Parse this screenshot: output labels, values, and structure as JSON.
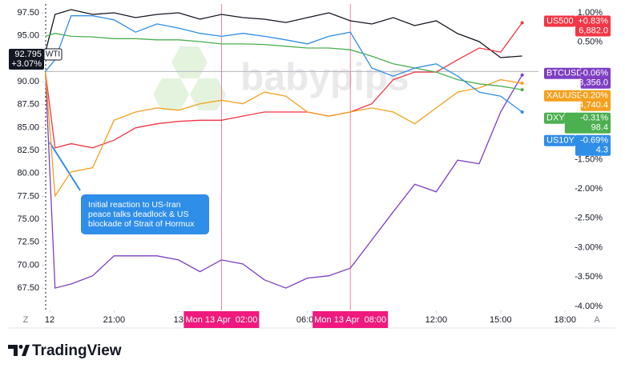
{
  "chart_data": {
    "type": "line",
    "x": [
      -0.2,
      0.25,
      1,
      2,
      3,
      4,
      5,
      6,
      7,
      8,
      9,
      10,
      11,
      12,
      13,
      14,
      15,
      16,
      17,
      18,
      19,
      20,
      21,
      22
    ],
    "xlim": [
      -0.26,
      22.76
    ],
    "xticks": [
      {
        "value": 0,
        "label": "12"
      },
      {
        "value": 3,
        "label": "21:00"
      },
      {
        "value": 6,
        "label": "13"
      },
      {
        "value": 8,
        "label": "Mon 13 Apr  02:00",
        "highlight": true
      },
      {
        "value": 12,
        "label": "06:00"
      },
      {
        "value": 14,
        "label": "Mon 13 Apr  08:00",
        "highlight": true
      },
      {
        "value": 18,
        "label": "12:00"
      },
      {
        "value": 21,
        "label": "15:00"
      },
      {
        "value": 24,
        "label": "18:00"
      }
    ],
    "ylim": [
      65.07,
      98.46
    ],
    "yticks": [
      {
        "value": 97.5,
        "label": "97.50"
      },
      {
        "value": 95,
        "label": "95.00"
      },
      {
        "value": 92.5,
        "label": "92.50"
      },
      {
        "value": 90,
        "label": "90.00"
      },
      {
        "value": 87.5,
        "label": "87.50"
      },
      {
        "value": 85,
        "label": "85.00"
      },
      {
        "value": 82.5,
        "label": "82.50"
      },
      {
        "value": 80,
        "label": "80.00"
      },
      {
        "value": 77.5,
        "label": "77.50"
      },
      {
        "value": 75,
        "label": "75.00"
      },
      {
        "value": 72.5,
        "label": "72.50"
      },
      {
        "value": 70,
        "label": "70.00"
      },
      {
        "value": 67.5,
        "label": "67.50"
      }
    ],
    "y2lim": [
      -4.07,
      1.15
    ],
    "y2ticks": [
      {
        "value": 1,
        "label": "1.00%"
      },
      {
        "value": 0.5,
        "label": "0.50%"
      },
      {
        "value": -1.5,
        "label": "-1.50%"
      },
      {
        "value": -2,
        "label": "-2.00%"
      },
      {
        "value": -2.5,
        "label": "-2.50%"
      },
      {
        "value": -3,
        "label": "-3.00%"
      },
      {
        "value": -3.5,
        "label": "-3.50%"
      },
      {
        "value": -4,
        "label": "-4.00%"
      }
    ],
    "series": [
      {
        "name": "WTI",
        "color": "#131722",
        "axis": "y",
        "change_label": "+3.07%",
        "price_label": "92.795",
        "values": [
          93.2,
          97.33,
          97.85,
          97.33,
          97.5,
          96.98,
          97.33,
          97.5,
          96.8,
          97.33,
          96.98,
          96.8,
          96.45,
          96.98,
          97.5,
          96.63,
          96.28,
          96.98,
          96.11,
          96.63,
          95.23,
          94.36,
          92.62,
          92.795
        ]
      },
      {
        "name": "US500",
        "color": "#f23645",
        "axis": "y2",
        "change_label": "+0.83%",
        "price_label": "6,882.0",
        "values": [
          0,
          -1.3,
          -1.23,
          -1.3,
          -1.17,
          -0.96,
          -0.89,
          -0.85,
          -0.83,
          -0.83,
          -0.76,
          -0.69,
          -0.69,
          -0.69,
          -0.76,
          -0.69,
          -0.55,
          -0.14,
          -0.01,
          -0.01,
          0.2,
          0.4,
          0.33,
          0.83
        ]
      },
      {
        "name": "BTCUSD",
        "color": "#7e3fc2",
        "axis": "y2",
        "change_label": "-0.06%",
        "price_label": "73,356.0",
        "values": [
          0,
          -3.69,
          -3.62,
          -3.48,
          -3.14,
          -3.14,
          -3.14,
          -3.21,
          -3.41,
          -3.21,
          -3.28,
          -3.55,
          -3.69,
          -3.52,
          -3.48,
          -3.35,
          -2.87,
          -2.39,
          -1.92,
          -2.05,
          -1.51,
          -1.57,
          -0.69,
          -0.06
        ]
      },
      {
        "name": "XAUUSD",
        "color": "#f5a01e",
        "axis": "y2",
        "change_label": "-0.20%",
        "price_label": "4,740.4",
        "values": [
          0,
          -2.12,
          -1.71,
          -1.64,
          -0.83,
          -0.69,
          -0.62,
          -0.66,
          -0.55,
          -0.49,
          -0.55,
          -0.35,
          -0.42,
          -0.69,
          -0.76,
          -0.69,
          -0.62,
          -0.69,
          -0.89,
          -0.62,
          -0.35,
          -0.28,
          -0.14,
          -0.2
        ]
      },
      {
        "name": "DXY",
        "color": "#4caf50",
        "axis": "y2",
        "change_label": "-0.31%",
        "price_label": "98.4",
        "values": [
          0.6,
          0.65,
          0.6,
          0.59,
          0.56,
          0.56,
          0.54,
          0.54,
          0.51,
          0.47,
          0.47,
          0.46,
          0.43,
          0.4,
          0.4,
          0.37,
          0.26,
          0.13,
          0.06,
          -0.01,
          -0.14,
          -0.21,
          -0.25,
          -0.31
        ]
      },
      {
        "name": "US10Y",
        "color": "#2f8ee8",
        "axis": "y2",
        "change_label": "-0.69%",
        "price_label": "4.3",
        "values": [
          0,
          0.2,
          0.95,
          0.95,
          0.88,
          0.67,
          0.81,
          0.74,
          0.65,
          0.6,
          0.65,
          0.6,
          0.54,
          0.47,
          0.6,
          0.67,
          0.06,
          -0.08,
          0.06,
          0.13,
          -0.08,
          -0.35,
          -0.42,
          -0.69
        ]
      }
    ],
    "annotation": [
      "Initial reaction to US-Iran",
      "peace talks deadlock & US",
      "blockade of Strait of Hormux"
    ],
    "watermark": "babypips",
    "scale_buttons": [
      "Z",
      "A"
    ],
    "footer": "TradingView"
  }
}
